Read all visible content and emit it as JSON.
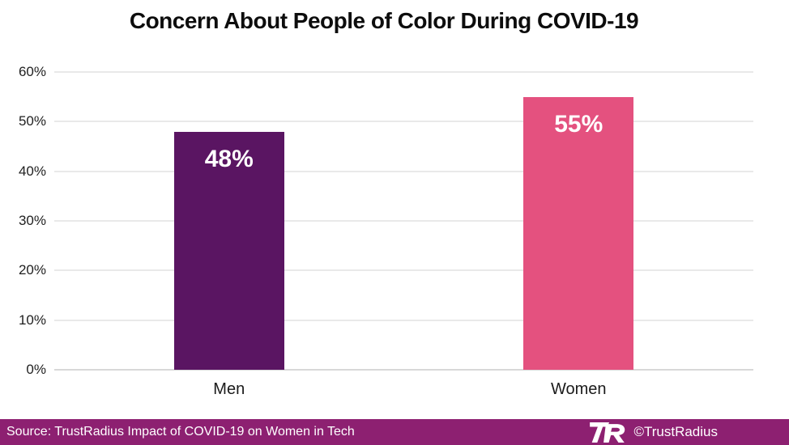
{
  "title": "Concern About People of Color During COVID-19",
  "chart_data": {
    "type": "bar",
    "title": "Concern About People of Color During COVID-19",
    "categories": [
      "Men",
      "Women"
    ],
    "values": [
      48,
      55
    ],
    "value_labels": [
      "48%",
      "55%"
    ],
    "bar_colors": [
      "#5a1562",
      "#e4517f"
    ],
    "xlabel": "",
    "ylabel": "",
    "ylim": [
      0,
      60
    ],
    "yticks": [
      "0%",
      "10%",
      "20%",
      "30%",
      "40%",
      "50%",
      "60%"
    ],
    "grid": true,
    "legend": false,
    "value_label_color": "#ffffff"
  },
  "footer": {
    "source": "Source: TrustRadius Impact of COVID-19 on Women in Tech",
    "brand": "©TrustRadius",
    "band_color": "#8d2071",
    "logo": "trustradius-logo"
  }
}
